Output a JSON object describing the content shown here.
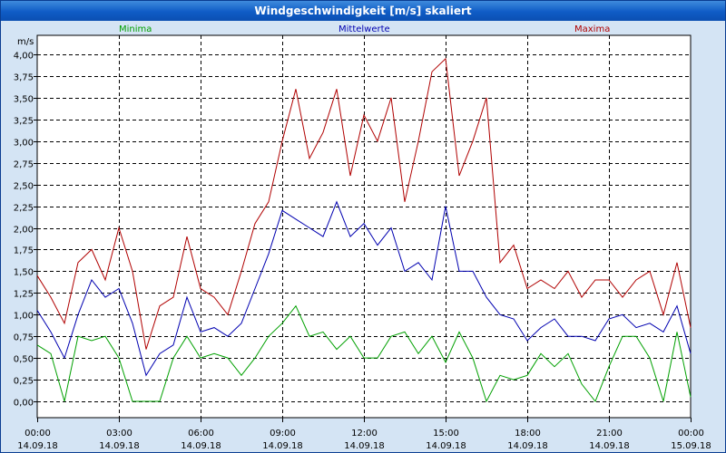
{
  "window": {
    "title": "Windgeschwindigkeit [m/s] skaliert"
  },
  "chart_data": {
    "type": "line",
    "title": "Windgeschwindigkeit [m/s] skaliert",
    "ylabel": "m/s",
    "ylim": [
      0,
      4
    ],
    "yticks": [
      "0,00",
      "0,25",
      "0,50",
      "0,75",
      "1,00",
      "1,25",
      "1,50",
      "1,75",
      "2,00",
      "2,25",
      "2,50",
      "2,75",
      "3,00",
      "3,25",
      "3,50",
      "3,75",
      "4,00"
    ],
    "xticks": [
      {
        "time": "00:00",
        "date": "14.09.18"
      },
      {
        "time": "03:00",
        "date": "14.09.18"
      },
      {
        "time": "06:00",
        "date": "14.09.18"
      },
      {
        "time": "09:00",
        "date": "14.09.18"
      },
      {
        "time": "12:00",
        "date": "14.09.18"
      },
      {
        "time": "15:00",
        "date": "14.09.18"
      },
      {
        "time": "18:00",
        "date": "14.09.18"
      },
      {
        "time": "21:00",
        "date": "14.09.18"
      },
      {
        "time": "00:00",
        "date": "15.09.18"
      }
    ],
    "x_hours": [
      0,
      24
    ],
    "series": [
      {
        "name": "Minima",
        "color": "#00a000",
        "x": [
          0,
          0.5,
          1,
          1.5,
          2,
          2.5,
          3,
          3.5,
          4,
          4.5,
          5,
          5.5,
          6,
          6.5,
          7,
          7.5,
          8,
          8.5,
          9,
          9.5,
          10,
          10.5,
          11,
          11.5,
          12,
          12.5,
          13,
          13.5,
          14,
          14.5,
          15,
          15.5,
          16,
          16.5,
          17,
          17.5,
          18,
          18.5,
          19,
          19.5,
          20,
          20.5,
          21,
          21.5,
          22,
          22.5,
          23,
          23.5,
          24
        ],
        "values": [
          0.65,
          0.55,
          0.0,
          0.75,
          0.7,
          0.75,
          0.5,
          0.0,
          0.0,
          0.0,
          0.5,
          0.75,
          0.5,
          0.55,
          0.5,
          0.3,
          0.5,
          0.75,
          0.9,
          1.1,
          0.75,
          0.8,
          0.6,
          0.75,
          0.5,
          0.5,
          0.75,
          0.8,
          0.55,
          0.75,
          0.45,
          0.8,
          0.5,
          0.0,
          0.3,
          0.25,
          0.3,
          0.55,
          0.4,
          0.55,
          0.2,
          0.0,
          0.4,
          0.75,
          0.75,
          0.5,
          0.0,
          0.8,
          0.05
        ]
      },
      {
        "name": "Mittelwerte",
        "color": "#0000b0",
        "x": [
          0,
          0.5,
          1,
          1.5,
          2,
          2.5,
          3,
          3.5,
          4,
          4.5,
          5,
          5.5,
          6,
          6.5,
          7,
          7.5,
          8,
          8.5,
          9,
          9.5,
          10,
          10.5,
          11,
          11.5,
          12,
          12.5,
          13,
          13.5,
          14,
          14.5,
          15,
          15.5,
          16,
          16.5,
          17,
          17.5,
          18,
          18.5,
          19,
          19.5,
          20,
          20.5,
          21,
          21.5,
          22,
          22.5,
          23,
          23.5,
          24
        ],
        "values": [
          1.05,
          0.8,
          0.5,
          1.0,
          1.4,
          1.2,
          1.3,
          0.9,
          0.3,
          0.55,
          0.65,
          1.2,
          0.8,
          0.85,
          0.75,
          0.9,
          1.3,
          1.7,
          2.2,
          2.1,
          2.0,
          1.9,
          2.3,
          1.9,
          2.05,
          1.8,
          2.0,
          1.5,
          1.6,
          1.4,
          2.25,
          1.5,
          1.5,
          1.2,
          1.0,
          0.95,
          0.7,
          0.85,
          0.95,
          0.75,
          0.75,
          0.7,
          0.95,
          1.0,
          0.85,
          0.9,
          0.8,
          1.1,
          0.55
        ]
      },
      {
        "name": "Maxima",
        "color": "#b00000",
        "x": [
          0,
          0.5,
          1,
          1.5,
          2,
          2.5,
          3,
          3.5,
          4,
          4.5,
          5,
          5.5,
          6,
          6.5,
          7,
          7.5,
          8,
          8.5,
          9,
          9.5,
          10,
          10.5,
          11,
          11.5,
          12,
          12.5,
          13,
          13.5,
          14,
          14.5,
          15,
          15.5,
          16,
          16.5,
          17,
          17.5,
          18,
          18.5,
          19,
          19.5,
          20,
          20.5,
          21,
          21.5,
          22,
          22.5,
          23,
          23.5,
          24
        ],
        "values": [
          1.45,
          1.2,
          0.9,
          1.6,
          1.75,
          1.4,
          2.0,
          1.5,
          0.6,
          1.1,
          1.2,
          1.9,
          1.3,
          1.2,
          1.0,
          1.5,
          2.05,
          2.3,
          3.0,
          3.6,
          2.8,
          3.1,
          3.6,
          2.6,
          3.3,
          3.0,
          3.5,
          2.3,
          3.0,
          3.8,
          3.95,
          2.6,
          3.0,
          3.5,
          1.6,
          1.8,
          1.3,
          1.4,
          1.3,
          1.5,
          1.2,
          1.4,
          1.4,
          1.2,
          1.4,
          1.5,
          1.0,
          1.6,
          0.85
        ]
      }
    ]
  }
}
